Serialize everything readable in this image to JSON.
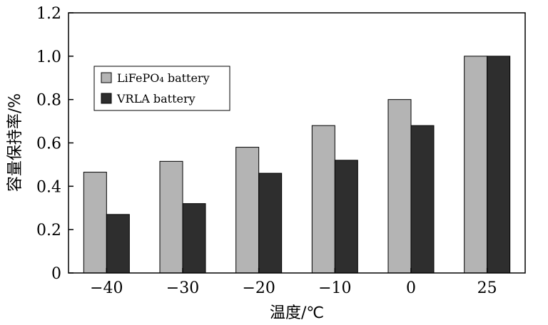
{
  "chart_data": {
    "type": "bar",
    "categories": [
      "−40",
      "−30",
      "−20",
      "−10",
      "0",
      "25"
    ],
    "series": [
      {
        "name": "LiFePO₄ battery",
        "color": "#b4b4b4",
        "values": [
          0.465,
          0.515,
          0.58,
          0.68,
          0.8,
          1.0
        ]
      },
      {
        "name": "VRLA battery",
        "color": "#2e2e2e",
        "values": [
          0.27,
          0.32,
          0.46,
          0.52,
          0.68,
          1.0
        ]
      }
    ],
    "title": "",
    "xlabel": "温度/℃",
    "ylabel": "容量保持率/%",
    "ylim": [
      0,
      1.2
    ],
    "yticks": [
      0,
      0.2,
      0.4,
      0.6,
      0.8,
      1.0,
      1.2
    ],
    "ytick_labels": [
      "0",
      "0.2",
      "0.4",
      "0.6",
      "0.8",
      "1.0",
      "1.2"
    ],
    "grid": false,
    "legend": "top-left"
  }
}
